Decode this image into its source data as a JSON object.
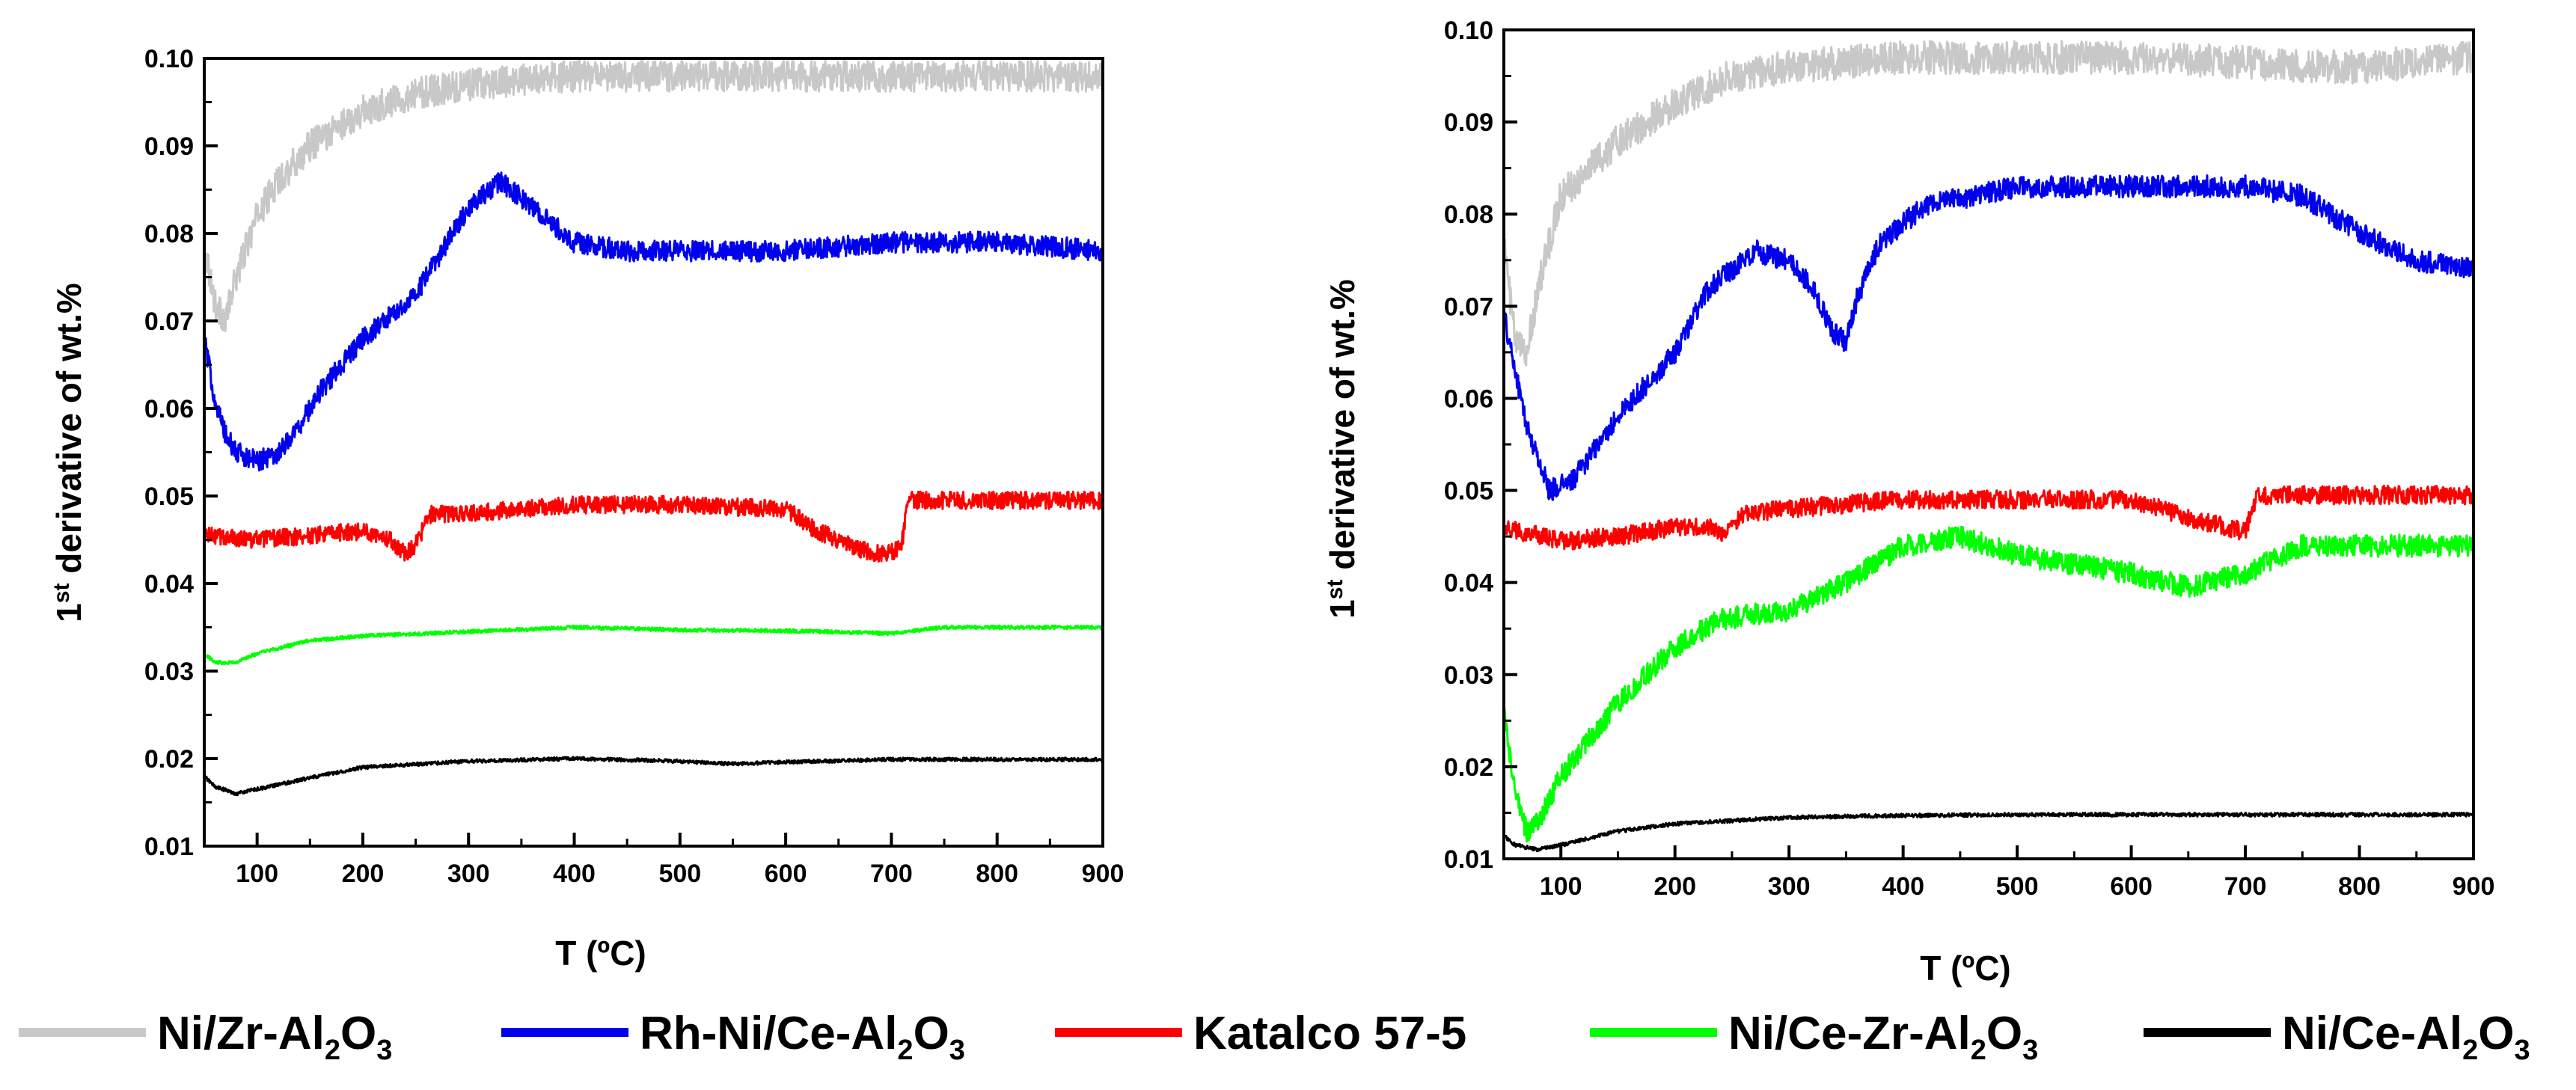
{
  "chart_data": [
    {
      "type": "line",
      "panel": "left",
      "xlabel": "T (ºC)",
      "ylabel_parts": {
        "pre": "1",
        "sup": "st",
        "post": " derivative of wt.%"
      },
      "xlim": [
        50,
        900
      ],
      "ylim": [
        0.01,
        0.1
      ],
      "xticks": [
        100,
        200,
        300,
        400,
        500,
        600,
        700,
        800,
        900
      ],
      "yticks": [
        0.01,
        0.02,
        0.03,
        0.04,
        0.05,
        0.06,
        0.07,
        0.08,
        0.09,
        0.1
      ],
      "xtick_labels": [
        "100",
        "200",
        "300",
        "400",
        "500",
        "600",
        "700",
        "800",
        "900"
      ],
      "ytick_labels": [
        "0.01",
        "0.02",
        "0.03",
        "0.04",
        "0.05",
        "0.06",
        "0.07",
        "0.08",
        "0.09",
        "0.10"
      ],
      "series": [
        {
          "name": "Ni/Zr-Al2O3",
          "color": "#c8c8c8",
          "noise": 0.0018,
          "x": [
            50,
            60,
            70,
            80,
            100,
            120,
            150,
            200,
            250,
            300,
            350,
            400,
            500,
            600,
            700,
            800,
            900
          ],
          "y": [
            0.079,
            0.072,
            0.07,
            0.075,
            0.082,
            0.086,
            0.09,
            0.094,
            0.096,
            0.097,
            0.0975,
            0.098,
            0.098,
            0.098,
            0.098,
            0.098,
            0.098
          ]
        },
        {
          "name": "Rh-Ni/Ce-Al2O3",
          "color": "#0000ee",
          "noise": 0.0012,
          "x": [
            50,
            60,
            70,
            80,
            100,
            120,
            140,
            160,
            200,
            250,
            300,
            330,
            360,
            400,
            450,
            500,
            600,
            700,
            800,
            900
          ],
          "y": [
            0.068,
            0.061,
            0.057,
            0.055,
            0.054,
            0.055,
            0.058,
            0.062,
            0.068,
            0.073,
            0.083,
            0.086,
            0.083,
            0.079,
            0.078,
            0.078,
            0.078,
            0.079,
            0.079,
            0.078
          ]
        },
        {
          "name": "Katalco 57-5",
          "color": "#ff0000",
          "noise": 0.001,
          "x": [
            50,
            100,
            150,
            200,
            220,
            240,
            250,
            265,
            300,
            400,
            500,
            600,
            630,
            680,
            700,
            710,
            715,
            800,
            900
          ],
          "y": [
            0.0455,
            0.045,
            0.0455,
            0.046,
            0.0455,
            0.0435,
            0.0445,
            0.048,
            0.048,
            0.049,
            0.049,
            0.0485,
            0.046,
            0.0435,
            0.0435,
            0.0445,
            0.0495,
            0.0495,
            0.0495
          ]
        },
        {
          "name": "Ni/Ce-Zr-Al2O3",
          "color": "#00ff00",
          "noise": 0.0002,
          "x": [
            50,
            60,
            80,
            100,
            150,
            200,
            300,
            400,
            500,
            600,
            700,
            750,
            900
          ],
          "y": [
            0.032,
            0.031,
            0.031,
            0.032,
            0.0335,
            0.034,
            0.0345,
            0.035,
            0.0347,
            0.0346,
            0.0343,
            0.035,
            0.035
          ]
        },
        {
          "name": "Ni/Ce-Al2O3",
          "color": "#000000",
          "noise": 0.0002,
          "x": [
            50,
            60,
            80,
            100,
            150,
            200,
            300,
            400,
            500,
            550,
            600,
            700,
            800,
            900
          ],
          "y": [
            0.018,
            0.0168,
            0.016,
            0.0165,
            0.0178,
            0.019,
            0.0197,
            0.02,
            0.0197,
            0.0194,
            0.0196,
            0.0199,
            0.0199,
            0.0199
          ]
        }
      ]
    },
    {
      "type": "line",
      "panel": "right",
      "xlabel": "T (ºC)",
      "ylabel_parts": {
        "pre": "1",
        "sup": "st",
        "post": " derivative of wt.%"
      },
      "xlim": [
        50,
        900
      ],
      "ylim": [
        0.01,
        0.1
      ],
      "xticks": [
        100,
        200,
        300,
        400,
        500,
        600,
        700,
        800,
        900
      ],
      "yticks": [
        0.01,
        0.02,
        0.03,
        0.04,
        0.05,
        0.06,
        0.07,
        0.08,
        0.09,
        0.1
      ],
      "xtick_labels": [
        "100",
        "200",
        "300",
        "400",
        "500",
        "600",
        "700",
        "800",
        "900"
      ],
      "ytick_labels": [
        "0.01",
        "0.02",
        "0.03",
        "0.04",
        "0.05",
        "0.06",
        "0.07",
        "0.08",
        "0.09",
        "0.10"
      ],
      "series": [
        {
          "name": "Ni/Zr-Al2O3",
          "color": "#c8c8c8",
          "noise": 0.0018,
          "x": [
            50,
            60,
            70,
            80,
            100,
            150,
            200,
            250,
            300,
            400,
            500,
            600,
            700,
            750,
            800,
            900
          ],
          "y": [
            0.077,
            0.066,
            0.065,
            0.072,
            0.082,
            0.088,
            0.092,
            0.095,
            0.096,
            0.097,
            0.097,
            0.097,
            0.0965,
            0.096,
            0.096,
            0.097
          ]
        },
        {
          "name": "Rh-Ni/Ce-Al2O3",
          "color": "#0000ee",
          "noise": 0.0012,
          "x": [
            50,
            70,
            90,
            110,
            150,
            200,
            230,
            270,
            300,
            320,
            340,
            350,
            360,
            380,
            420,
            500,
            600,
            700,
            750,
            800,
            850,
            900
          ],
          "y": [
            0.069,
            0.057,
            0.05,
            0.051,
            0.058,
            0.065,
            0.072,
            0.076,
            0.075,
            0.072,
            0.067,
            0.066,
            0.071,
            0.077,
            0.081,
            0.083,
            0.083,
            0.083,
            0.082,
            0.078,
            0.075,
            0.074
          ]
        },
        {
          "name": "Katalco 57-5",
          "color": "#ff0000",
          "noise": 0.001,
          "x": [
            50,
            100,
            150,
            200,
            230,
            240,
            260,
            300,
            400,
            500,
            600,
            650,
            700,
            710,
            800,
            900
          ],
          "y": [
            0.046,
            0.0445,
            0.045,
            0.046,
            0.046,
            0.045,
            0.0475,
            0.048,
            0.049,
            0.049,
            0.049,
            0.047,
            0.0455,
            0.0495,
            0.0495,
            0.0495
          ]
        },
        {
          "name": "Ni/Ce-Zr-Al2O3",
          "color": "#00ff00",
          "noise": 0.0012,
          "x": [
            50,
            60,
            70,
            80,
            100,
            150,
            200,
            240,
            300,
            350,
            400,
            450,
            500,
            600,
            650,
            700,
            750,
            800,
            900
          ],
          "y": [
            0.026,
            0.017,
            0.013,
            0.014,
            0.019,
            0.027,
            0.033,
            0.036,
            0.037,
            0.04,
            0.044,
            0.045,
            0.043,
            0.041,
            0.0395,
            0.041,
            0.044,
            0.044,
            0.044
          ]
        },
        {
          "name": "Ni/Ce-Al2O3",
          "color": "#000000",
          "noise": 0.0002,
          "x": [
            50,
            60,
            80,
            100,
            150,
            200,
            300,
            400,
            500,
            600,
            700,
            800,
            900
          ],
          "y": [
            0.0125,
            0.0115,
            0.011,
            0.0115,
            0.013,
            0.0138,
            0.0145,
            0.0147,
            0.0148,
            0.0148,
            0.0148,
            0.0148,
            0.0148
          ]
        }
      ]
    }
  ],
  "legend": [
    {
      "pre": "Ni/Zr-Al",
      "sub1": "2",
      "mid": "O",
      "sub2": "3",
      "color": "#c8c8c8"
    },
    {
      "pre": "Rh-Ni/Ce-Al",
      "sub1": "2",
      "mid": "O",
      "sub2": "3",
      "color": "#0000ee"
    },
    {
      "pre": "Katalco 57-5",
      "sub1": "",
      "mid": "",
      "sub2": "",
      "color": "#ff0000"
    },
    {
      "pre": "Ni/Ce-Zr-Al",
      "sub1": "2",
      "mid": "O",
      "sub2": "3",
      "color": "#00ff00"
    },
    {
      "pre": "Ni/Ce-Al",
      "sub1": "2",
      "mid": "O",
      "sub2": "3",
      "color": "#000000"
    }
  ]
}
